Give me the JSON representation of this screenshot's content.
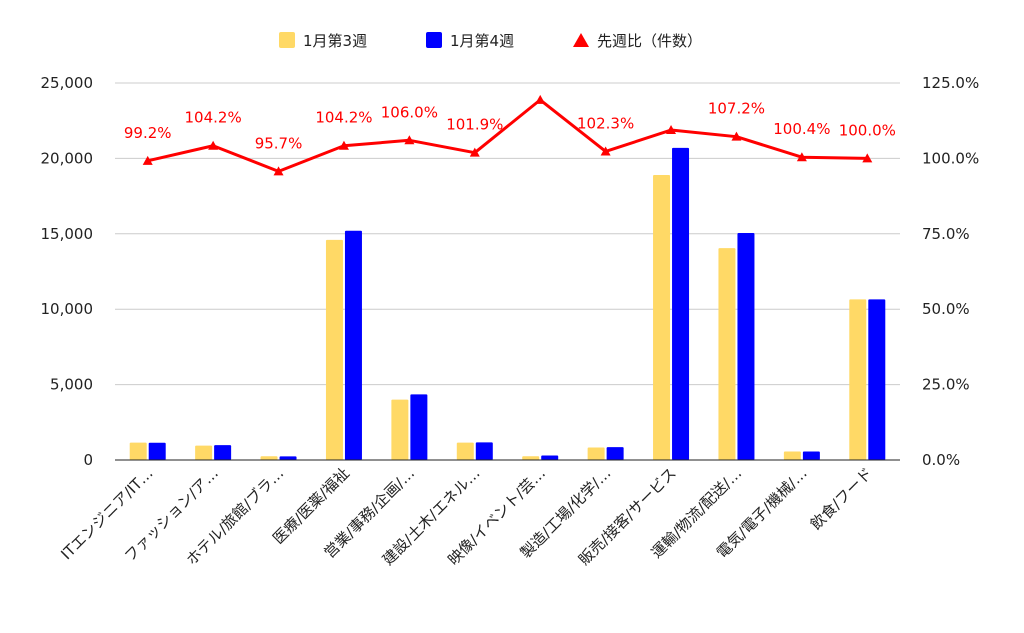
{
  "colors": {
    "week3": "#FFD966",
    "week4": "#0000FF",
    "ratio": "#FF0000",
    "grid": "#CCCCCC",
    "axis": "#222222"
  },
  "legend": {
    "week3": "1月第3週",
    "week4": "1月第4週",
    "ratio": "先週比（件数）"
  },
  "chart_data": {
    "type": "bar",
    "legend_position": "top",
    "grid": true,
    "categories": [
      "ITエンジニア/IT…",
      "ファッション/ア…",
      "ホテル/旅館/ブラ…",
      "医療/医薬/福祉",
      "営業/事務/企画/…",
      "建設/土木/エネル…",
      "映像/イベント/芸…",
      "製造/工場/化学/…",
      "販売/接客/サービス",
      "運輸/物流/配送/…",
      "電気/電子/機械/…",
      "飲食/フード"
    ],
    "series": [
      {
        "name": "1月第3週",
        "type": "bar",
        "axis": "left",
        "values": [
          1150,
          950,
          250,
          14600,
          4000,
          1150,
          250,
          830,
          18900,
          14050,
          560,
          10650
        ]
      },
      {
        "name": "1月第4週",
        "type": "bar",
        "axis": "left",
        "values": [
          1140,
          990,
          240,
          15200,
          4350,
          1170,
          300,
          850,
          20700,
          15050,
          560,
          10650
        ]
      },
      {
        "name": "先週比（件数）",
        "type": "line",
        "marker": "triangle",
        "axis": "right",
        "values": [
          99.2,
          104.2,
          95.7,
          104.2,
          106.0,
          101.9,
          119.4,
          102.3,
          109.4,
          107.2,
          100.4,
          100.0
        ],
        "labels": [
          "99.2%",
          "104.2%",
          "95.7%",
          "104.2%",
          "106.0%",
          "101.9%",
          "",
          "102.3%",
          "",
          "107.2%",
          "100.4%",
          "100.0%"
        ]
      }
    ],
    "y_left": {
      "min": 0,
      "max": 25000,
      "ticks": [
        "0",
        "5,000",
        "10,000",
        "15,000",
        "20,000",
        "25,000"
      ]
    },
    "y_right": {
      "min": 0,
      "max": 125,
      "ticks": [
        "0.0%",
        "25.0%",
        "50.0%",
        "75.0%",
        "100.0%",
        "125.0%"
      ]
    }
  }
}
